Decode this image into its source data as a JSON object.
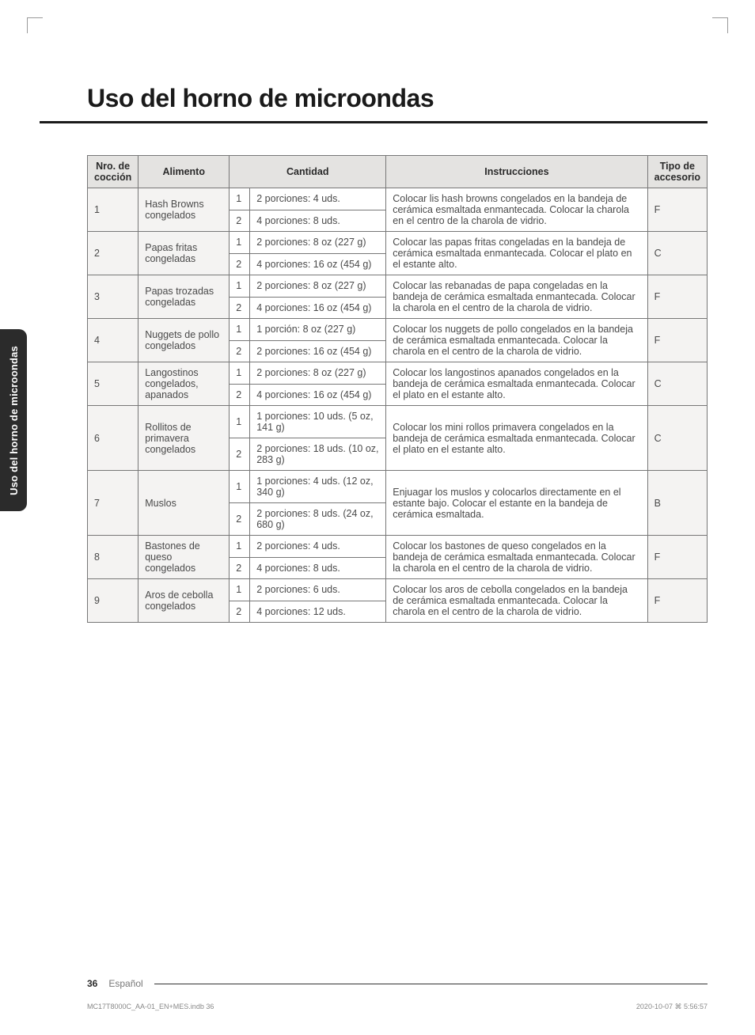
{
  "heading": "Uso del horno de microondas",
  "side_tab": "Uso del horno de microondas",
  "columns": {
    "num": "Nro. de cocción",
    "food": "Alimento",
    "qty": "Cantidad",
    "instr": "Instrucciones",
    "acc": "Tipo de accesorio"
  },
  "rows": [
    {
      "num": "1",
      "food": "Hash Browns congelados",
      "q": [
        {
          "n": "1",
          "txt": "2 porciones: 4 uds."
        },
        {
          "n": "2",
          "txt": "4 porciones: 8 uds."
        }
      ],
      "instr": "Colocar lis hash browns congelados en la bandeja de cerámica esmaltada enmantecada. Colocar la charola en el centro de la charola de vidrio.",
      "acc": "F"
    },
    {
      "num": "2",
      "food": "Papas fritas congeladas",
      "q": [
        {
          "n": "1",
          "txt": "2 porciones: 8 oz (227 g)"
        },
        {
          "n": "2",
          "txt": "4 porciones: 16 oz (454 g)"
        }
      ],
      "instr": "Colocar las papas fritas congeladas en la bandeja de cerámica esmaltada enmantecada. Colocar el plato en el estante alto.",
      "acc": "C"
    },
    {
      "num": "3",
      "food": "Papas trozadas congeladas",
      "q": [
        {
          "n": "1",
          "txt": "2 porciones: 8 oz (227 g)"
        },
        {
          "n": "2",
          "txt": "4 porciones: 16 oz (454 g)"
        }
      ],
      "instr": "Colocar las rebanadas de papa congeladas en la bandeja de cerámica esmaltada enmantecada. Colocar la charola en el centro de la charola de vidrio.",
      "acc": "F"
    },
    {
      "num": "4",
      "food": "Nuggets de pollo congelados",
      "q": [
        {
          "n": "1",
          "txt": "1 porción: 8 oz (227 g)"
        },
        {
          "n": "2",
          "txt": "2 porciones: 16 oz (454 g)"
        }
      ],
      "instr": "Colocar los nuggets de pollo congelados en la bandeja de cerámica esmaltada enmantecada. Colocar la charola en el centro de la charola de vidrio.",
      "acc": "F"
    },
    {
      "num": "5",
      "food": "Langostinos congelados, apanados",
      "q": [
        {
          "n": "1",
          "txt": "2 porciones: 8 oz (227 g)"
        },
        {
          "n": "2",
          "txt": "4 porciones: 16 oz (454 g)"
        }
      ],
      "instr": "Colocar los langostinos apanados congelados en la bandeja de cerámica esmaltada enmantecada. Colocar el plato en el estante alto.",
      "acc": "C"
    },
    {
      "num": "6",
      "food": "Rollitos de primavera congelados",
      "q": [
        {
          "n": "1",
          "txt": "1 porciones: 10 uds. (5 oz, 141 g)"
        },
        {
          "n": "2",
          "txt": "2 porciones: 18 uds. (10 oz, 283 g)"
        }
      ],
      "instr": "Colocar los mini rollos primavera congelados en la bandeja de cerámica esmaltada enmantecada. Colocar el plato en el estante alto.",
      "acc": "C"
    },
    {
      "num": "7",
      "food": "Muslos",
      "q": [
        {
          "n": "1",
          "txt": "1 porciones: 4 uds. (12 oz, 340 g)"
        },
        {
          "n": "2",
          "txt": "2 porciones: 8 uds. (24 oz, 680 g)"
        }
      ],
      "instr": "Enjuagar los muslos y colocarlos directamente en el estante bajo. Colocar el estante en la bandeja de cerámica esmaltada.",
      "acc": "B"
    },
    {
      "num": "8",
      "food": "Bastones de queso congelados",
      "q": [
        {
          "n": "1",
          "txt": "2 porciones: 4 uds."
        },
        {
          "n": "2",
          "txt": "4 porciones: 8 uds."
        }
      ],
      "instr": "Colocar los bastones de queso congelados en la bandeja de cerámica esmaltada enmantecada. Colocar la charola en el centro de la charola de vidrio.",
      "acc": "F"
    },
    {
      "num": "9",
      "food": "Aros de cebolla congelados",
      "q": [
        {
          "n": "1",
          "txt": "2 porciones: 6 uds."
        },
        {
          "n": "2",
          "txt": "4 porciones: 12 uds."
        }
      ],
      "instr": "Colocar los aros de cebolla congelados en la bandeja de cerámica esmaltada enmantecada. Colocar la charola en el centro de la charola de vidrio.",
      "acc": "F"
    }
  ],
  "footer": {
    "page": "36",
    "lang": "Español"
  },
  "imprint": {
    "left": "MC17T8000C_AA-01_EN+MES.indb   36",
    "right": "2020-10-07   ⌘ 5:56:57"
  },
  "colors": {
    "header_bg": "#e4e3e1",
    "shade_bg": "#f4f3f2",
    "border": "#777777",
    "tab_bg": "#2b2b2b",
    "text": "#3a3a3a"
  }
}
